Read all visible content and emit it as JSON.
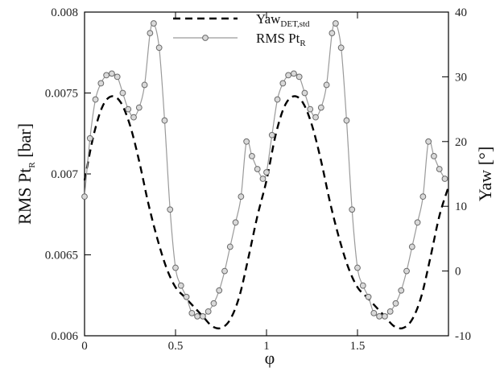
{
  "chart_data": {
    "type": "line",
    "xlabel": "φ",
    "ylabel_left_main": "RMS Pt",
    "ylabel_left_sub": "R",
    "ylabel_left_unit": " [bar]",
    "ylabel_right": "Yaw [°]",
    "xlim": [
      0,
      2
    ],
    "ylim": [
      0.006,
      0.008
    ],
    "ylim_right": [
      -10,
      40
    ],
    "x_ticks": [
      "0",
      "0.5",
      "1",
      "1.5"
    ],
    "y_ticks": [
      "0.006",
      "0.0065",
      "0.007",
      "0.0075",
      "0.008"
    ],
    "y_right_ticks": [
      "-10",
      "0",
      "10",
      "20",
      "30",
      "40"
    ],
    "grid": false,
    "legend_position": "top-center",
    "series": [
      {
        "name_main": "Yaw",
        "name_sub": "DET,std",
        "axis": "right",
        "style": "dashed",
        "color": "#000000",
        "x": [
          0,
          0.05,
          0.1,
          0.15,
          0.2,
          0.25,
          0.3,
          0.35,
          0.4,
          0.45,
          0.5,
          0.55,
          0.6,
          0.65,
          0.7,
          0.75,
          0.8,
          0.85,
          0.9,
          0.95,
          1.0,
          1.05,
          1.1,
          1.15,
          1.2,
          1.25,
          1.3,
          1.35,
          1.4,
          1.45,
          1.5,
          1.55,
          1.6,
          1.65,
          1.7,
          1.75,
          1.8,
          1.85,
          1.9,
          1.95,
          2.0
        ],
        "y": [
          14,
          21,
          25.5,
          27,
          26,
          22.5,
          17,
          10.5,
          5,
          0.5,
          -2.5,
          -4,
          -5.5,
          -7,
          -8.5,
          -8.8,
          -7.5,
          -4,
          2,
          8.5,
          14,
          21,
          25.5,
          27,
          26,
          22.5,
          17,
          10.5,
          5,
          0.5,
          -2.5,
          -4,
          -5.5,
          -7,
          -8.5,
          -8.8,
          -7.5,
          -4,
          2,
          8.5,
          13
        ]
      },
      {
        "name_main": "RMS Pt",
        "name_sub": "R",
        "axis": "left",
        "style": "solid-circles",
        "color": "#9a9a9a",
        "x": [
          0,
          0.03,
          0.06,
          0.09,
          0.12,
          0.15,
          0.18,
          0.21,
          0.24,
          0.27,
          0.3,
          0.33,
          0.36,
          0.38,
          0.41,
          0.44,
          0.47,
          0.5,
          0.53,
          0.56,
          0.59,
          0.62,
          0.65,
          0.68,
          0.71,
          0.74,
          0.77,
          0.8,
          0.83,
          0.86,
          0.89,
          0.92,
          0.95,
          0.98,
          1.0,
          1.03,
          1.06,
          1.09,
          1.12,
          1.15,
          1.18,
          1.21,
          1.24,
          1.27,
          1.3,
          1.33,
          1.36,
          1.38,
          1.41,
          1.44,
          1.47,
          1.5,
          1.53,
          1.56,
          1.59,
          1.62,
          1.65,
          1.68,
          1.71,
          1.74,
          1.77,
          1.8,
          1.83,
          1.86,
          1.89,
          1.92,
          1.95,
          1.98
        ],
        "y": [
          0.00686,
          0.00722,
          0.00746,
          0.00756,
          0.00761,
          0.00762,
          0.0076,
          0.0075,
          0.0074,
          0.00735,
          0.00741,
          0.00755,
          0.00787,
          0.00793,
          0.00778,
          0.00733,
          0.00678,
          0.00642,
          0.00631,
          0.00624,
          0.00614,
          0.00612,
          0.00612,
          0.00615,
          0.0062,
          0.00628,
          0.0064,
          0.00655,
          0.0067,
          0.00686,
          0.0072,
          0.00711,
          0.00703,
          0.00697,
          0.00701,
          0.00724,
          0.00746,
          0.00756,
          0.00761,
          0.00762,
          0.0076,
          0.0075,
          0.0074,
          0.00735,
          0.00741,
          0.00755,
          0.00787,
          0.00793,
          0.00778,
          0.00733,
          0.00678,
          0.00642,
          0.00631,
          0.00624,
          0.00614,
          0.00612,
          0.00612,
          0.00615,
          0.0062,
          0.00628,
          0.0064,
          0.00655,
          0.0067,
          0.00686,
          0.0072,
          0.00711,
          0.00703,
          0.00697
        ]
      }
    ]
  }
}
